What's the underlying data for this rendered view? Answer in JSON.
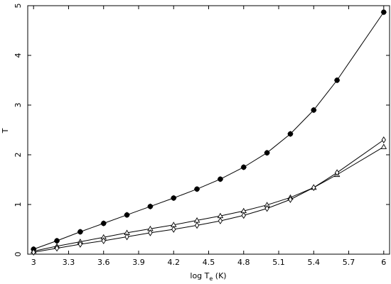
{
  "chart_data": {
    "type": "line",
    "xlabel": "log T",
    "xlabel_subscript": "e",
    "xlabel_unit": " (K)",
    "ylabel": "T",
    "xlim": [
      2.95,
      6.05
    ],
    "ylim": [
      0,
      5
    ],
    "grid": false,
    "xticks": [
      3,
      3.3,
      3.6,
      3.9,
      4.2,
      4.5,
      4.8,
      5.1,
      5.4,
      5.7,
      6
    ],
    "xtick_labels": [
      "3",
      "3.3",
      "3.6",
      "3.9",
      "4.2",
      "4.5",
      "4.8",
      "5.1",
      "5.4",
      "5.7",
      "6"
    ],
    "yticks": [
      0,
      1,
      2,
      3,
      4,
      5
    ],
    "ytick_labels": [
      "0",
      "1",
      "2",
      "3",
      "4",
      "5"
    ],
    "x": [
      3.0,
      3.2,
      3.4,
      3.6,
      3.8,
      4.0,
      4.2,
      4.4,
      4.6,
      4.8,
      5.0,
      5.2,
      5.4,
      5.6,
      6.0
    ],
    "series": [
      {
        "marker": "filled-star",
        "values": [
          0.1,
          0.27,
          0.45,
          0.62,
          0.79,
          0.96,
          1.13,
          1.31,
          1.51,
          1.75,
          2.04,
          2.42,
          2.9,
          3.5,
          4.87
        ]
      },
      {
        "marker": "open-triangle",
        "values": [
          0.06,
          0.16,
          0.25,
          0.34,
          0.43,
          0.51,
          0.59,
          0.68,
          0.77,
          0.87,
          0.99,
          1.14,
          1.34,
          1.6,
          2.16
        ]
      },
      {
        "marker": "open-diamond",
        "values": [
          0.04,
          0.12,
          0.2,
          0.27,
          0.35,
          0.43,
          0.5,
          0.58,
          0.67,
          0.78,
          0.92,
          1.1,
          1.34,
          1.64,
          2.3
        ]
      }
    ]
  }
}
